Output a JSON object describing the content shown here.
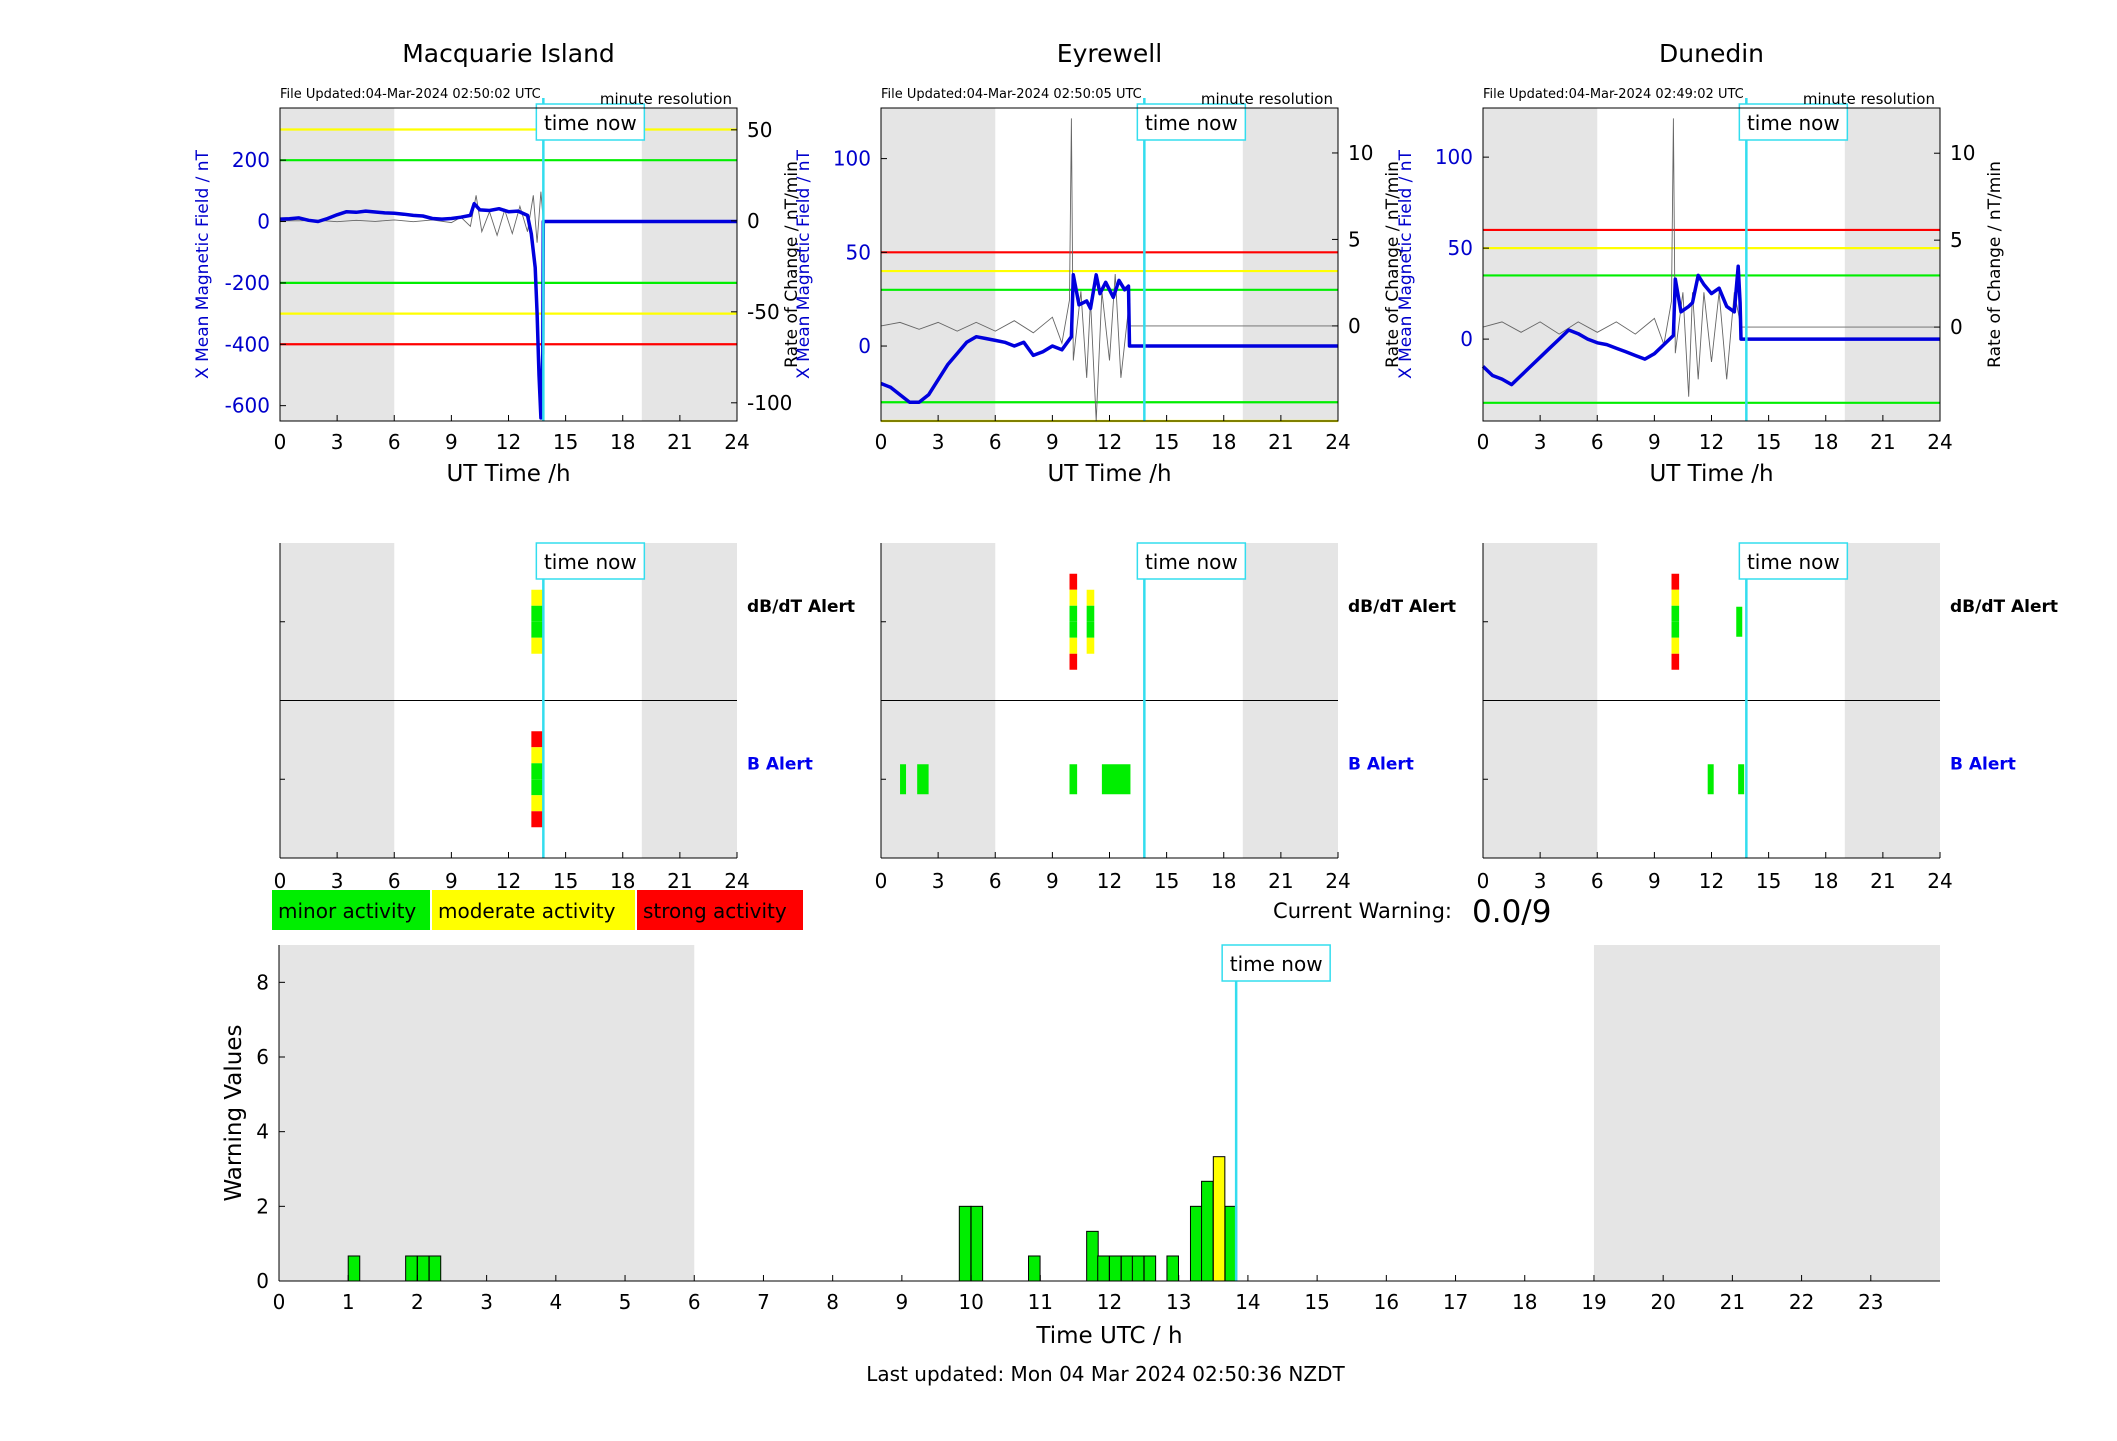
{
  "header": {
    "stations": [
      "Macquarie Island",
      "Eyrewell",
      "Dunedin"
    ]
  },
  "labels": {
    "time_now": "time now",
    "minute_resolution": "minute resolution",
    "ut_time": "UT Time /h",
    "ylabel_field": "X Mean Magnetic Field / nT",
    "ylabel_rate": "Rate of Change / nT/min",
    "dbdt_alert": "dB/dT Alert",
    "b_alert": "B Alert",
    "current_warning_label": "Current Warning:",
    "current_warning_value": "0.0/9",
    "bottom_ylabel": "Warning Values",
    "bottom_xlabel": "Time UTC / h",
    "last_updated": "Last updated: Mon 04 Mar 2024 02:50:36 NZDT"
  },
  "legend": {
    "minor": "minor activity",
    "moderate": "moderate activity",
    "strong": "strong activity"
  },
  "colors": {
    "minor": "#00ee00",
    "moderate": "#ffff00",
    "strong": "#ff0000",
    "field_line": "#0000dd",
    "time_now": "#33ddee",
    "shade": "#e5e5e5"
  },
  "chart_data": [
    {
      "type": "line",
      "title": "Macquarie Island",
      "file_updated": "File Updated:04-Mar-2024 02:50:02 UTC",
      "xlabel": "UT Time /h",
      "ylabel": "X Mean Magnetic Field / nT",
      "y2label": "Rate of Change / nT/min",
      "xlim": [
        0,
        24
      ],
      "ylim": [
        -650,
        370
      ],
      "y2lim": [
        -110,
        62
      ],
      "xticks": [
        0,
        3,
        6,
        9,
        12,
        15,
        18,
        21,
        24
      ],
      "yticks": [
        -600,
        -400,
        -200,
        0,
        200
      ],
      "y2ticks": [
        -100,
        -50,
        0,
        50
      ],
      "time_now": 13.83,
      "shaded": [
        [
          0,
          6
        ],
        [
          19,
          24
        ]
      ],
      "thresholds": [
        {
          "y": 300,
          "color": "yellow"
        },
        {
          "y": 200,
          "color": "green"
        },
        {
          "y": -200,
          "color": "green"
        },
        {
          "y": -300,
          "color": "yellow"
        },
        {
          "y": -400,
          "color": "red"
        }
      ],
      "field": [
        [
          0,
          8
        ],
        [
          0.5,
          9
        ],
        [
          1,
          12
        ],
        [
          1.5,
          4
        ],
        [
          2,
          0
        ],
        [
          2.5,
          10
        ],
        [
          3,
          22
        ],
        [
          3.5,
          32
        ],
        [
          4,
          30
        ],
        [
          4.5,
          34
        ],
        [
          5,
          31
        ],
        [
          5.5,
          28
        ],
        [
          6,
          27
        ],
        [
          6.5,
          24
        ],
        [
          7,
          20
        ],
        [
          7.5,
          18
        ],
        [
          8,
          10
        ],
        [
          8.5,
          8
        ],
        [
          9,
          10
        ],
        [
          9.5,
          14
        ],
        [
          10,
          20
        ],
        [
          10.2,
          58
        ],
        [
          10.5,
          38
        ],
        [
          11,
          36
        ],
        [
          11.5,
          42
        ],
        [
          12,
          32
        ],
        [
          12.5,
          34
        ],
        [
          13,
          20
        ],
        [
          13.2,
          -40
        ],
        [
          13.4,
          -150
        ],
        [
          13.5,
          -300
        ],
        [
          13.6,
          -500
        ],
        [
          13.7,
          -640
        ],
        [
          13.8,
          -430
        ],
        [
          13.83,
          0
        ],
        [
          24,
          0
        ]
      ],
      "rate": [
        [
          0,
          0
        ],
        [
          1,
          0
        ],
        [
          2,
          0.3
        ],
        [
          3,
          -0.5
        ],
        [
          4,
          0.3
        ],
        [
          5,
          -0.3
        ],
        [
          6,
          0.5
        ],
        [
          7,
          -0.5
        ],
        [
          8,
          0.5
        ],
        [
          9,
          -1
        ],
        [
          9.5,
          2
        ],
        [
          10,
          -3
        ],
        [
          10.3,
          14
        ],
        [
          10.6,
          -6
        ],
        [
          11,
          5
        ],
        [
          11.4,
          -8
        ],
        [
          11.8,
          6
        ],
        [
          12.2,
          -7
        ],
        [
          12.6,
          8
        ],
        [
          13,
          -6
        ],
        [
          13.3,
          14
        ],
        [
          13.5,
          -12
        ],
        [
          13.7,
          16
        ],
        [
          13.83,
          0
        ],
        [
          24,
          0
        ]
      ],
      "alerts": {
        "dbdt": [
          {
            "start": 13.2,
            "end": 13.8,
            "levels": [
              "yellow",
              "green",
              "green",
              "yellow"
            ]
          }
        ],
        "b": [
          {
            "start": 13.2,
            "end": 13.8,
            "levels": [
              "red",
              "yellow",
              "green",
              "green",
              "yellow",
              "red"
            ]
          }
        ]
      }
    },
    {
      "type": "line",
      "title": "Eyrewell",
      "file_updated": "File Updated:04-Mar-2024 02:50:05 UTC",
      "xlabel": "UT Time /h",
      "ylabel": "X Mean Magnetic Field / nT",
      "y2label": "Rate of Change / nT/min",
      "xlim": [
        0,
        24
      ],
      "ylim": [
        -40,
        127
      ],
      "y2lim": [
        -5.5,
        12.6
      ],
      "xticks": [
        0,
        3,
        6,
        9,
        12,
        15,
        18,
        21,
        24
      ],
      "yticks": [
        0,
        50,
        100
      ],
      "y2ticks": [
        0,
        5,
        10
      ],
      "time_now": 13.83,
      "shaded": [
        [
          0,
          6
        ],
        [
          19,
          24
        ]
      ],
      "thresholds": [
        {
          "y": 50,
          "color": "red"
        },
        {
          "y": 40,
          "color": "yellow"
        },
        {
          "y": 30,
          "color": "green"
        },
        {
          "y": -30,
          "color": "green"
        },
        {
          "y": -40,
          "color": "yellow"
        }
      ],
      "field": [
        [
          0,
          -20
        ],
        [
          0.5,
          -22
        ],
        [
          1,
          -26
        ],
        [
          1.5,
          -30
        ],
        [
          2,
          -30
        ],
        [
          2.5,
          -26
        ],
        [
          3,
          -18
        ],
        [
          3.5,
          -10
        ],
        [
          4,
          -4
        ],
        [
          4.5,
          2
        ],
        [
          5,
          5
        ],
        [
          5.5,
          4
        ],
        [
          6,
          3
        ],
        [
          6.5,
          2
        ],
        [
          7,
          0
        ],
        [
          7.5,
          2
        ],
        [
          8,
          -5
        ],
        [
          8.5,
          -3
        ],
        [
          9,
          0
        ],
        [
          9.5,
          -2
        ],
        [
          10,
          5
        ],
        [
          10.1,
          38
        ],
        [
          10.4,
          22
        ],
        [
          10.8,
          24
        ],
        [
          11,
          20
        ],
        [
          11.3,
          38
        ],
        [
          11.5,
          28
        ],
        [
          11.8,
          34
        ],
        [
          12.2,
          26
        ],
        [
          12.5,
          35
        ],
        [
          12.8,
          30
        ],
        [
          13,
          32
        ],
        [
          13.05,
          0
        ],
        [
          24,
          0
        ]
      ],
      "rate": [
        [
          0,
          0
        ],
        [
          1,
          0.2
        ],
        [
          2,
          -0.2
        ],
        [
          3,
          0.2
        ],
        [
          4,
          -0.3
        ],
        [
          5,
          0.2
        ],
        [
          6,
          -0.3
        ],
        [
          7,
          0.3
        ],
        [
          8,
          -0.4
        ],
        [
          9,
          0.5
        ],
        [
          9.5,
          -1
        ],
        [
          9.9,
          1.5
        ],
        [
          10,
          12
        ],
        [
          10.1,
          -2
        ],
        [
          10.5,
          2
        ],
        [
          10.8,
          -3
        ],
        [
          11,
          1.5
        ],
        [
          11.3,
          -5.5
        ],
        [
          11.6,
          2
        ],
        [
          12,
          -2
        ],
        [
          12.3,
          3
        ],
        [
          12.6,
          -3
        ],
        [
          13,
          1
        ],
        [
          13.05,
          0
        ],
        [
          24,
          0
        ]
      ],
      "alerts": {
        "dbdt": [
          {
            "start": 9.9,
            "end": 10.3,
            "levels": [
              "red",
              "yellow",
              "green",
              "green",
              "yellow",
              "red"
            ]
          },
          {
            "start": 10.8,
            "end": 11.2,
            "levels": [
              "yellow",
              "green",
              "green",
              "yellow"
            ]
          }
        ],
        "b": [
          {
            "start": 1.0,
            "end": 1.3,
            "levels": [
              "green"
            ]
          },
          {
            "start": 1.9,
            "end": 2.5,
            "levels": [
              "green"
            ]
          },
          {
            "start": 9.9,
            "end": 10.3,
            "levels": [
              "green"
            ]
          },
          {
            "start": 11.6,
            "end": 13.1,
            "levels": [
              "green"
            ]
          }
        ]
      }
    },
    {
      "type": "line",
      "title": "Dunedin",
      "file_updated": "File Updated:04-Mar-2024 02:49:02 UTC",
      "xlabel": "UT Time /h",
      "ylabel": "X Mean Magnetic Field / nT",
      "y2label": "Rate of Change / nT/min",
      "xlim": [
        0,
        24
      ],
      "ylim": [
        -45,
        127
      ],
      "y2lim": [
        -5.4,
        12.6
      ],
      "xticks": [
        0,
        3,
        6,
        9,
        12,
        15,
        18,
        21,
        24
      ],
      "yticks": [
        0,
        50,
        100
      ],
      "y2ticks": [
        0,
        5,
        10
      ],
      "time_now": 13.83,
      "shaded": [
        [
          0,
          6
        ],
        [
          19,
          24
        ]
      ],
      "thresholds": [
        {
          "y": 60,
          "color": "red"
        },
        {
          "y": 50,
          "color": "yellow"
        },
        {
          "y": 35,
          "color": "green"
        },
        {
          "y": -35,
          "color": "green"
        }
      ],
      "field": [
        [
          0,
          -15
        ],
        [
          0.5,
          -20
        ],
        [
          1,
          -22
        ],
        [
          1.5,
          -25
        ],
        [
          2,
          -20
        ],
        [
          2.5,
          -15
        ],
        [
          3,
          -10
        ],
        [
          3.5,
          -5
        ],
        [
          4,
          0
        ],
        [
          4.5,
          5
        ],
        [
          5,
          3
        ],
        [
          5.5,
          0
        ],
        [
          6,
          -2
        ],
        [
          6.5,
          -3
        ],
        [
          7,
          -5
        ],
        [
          7.5,
          -7
        ],
        [
          8,
          -9
        ],
        [
          8.5,
          -11
        ],
        [
          9,
          -8
        ],
        [
          9.5,
          -3
        ],
        [
          10,
          2
        ],
        [
          10.1,
          33
        ],
        [
          10.4,
          15
        ],
        [
          10.8,
          18
        ],
        [
          11,
          20
        ],
        [
          11.3,
          35
        ],
        [
          11.6,
          30
        ],
        [
          12,
          25
        ],
        [
          12.4,
          28
        ],
        [
          12.8,
          18
        ],
        [
          13.2,
          15
        ],
        [
          13.4,
          40
        ],
        [
          13.5,
          20
        ],
        [
          13.55,
          0
        ],
        [
          24,
          0
        ]
      ],
      "rate": [
        [
          0,
          0
        ],
        [
          1,
          0.3
        ],
        [
          2,
          -0.3
        ],
        [
          3,
          0.3
        ],
        [
          4,
          -0.4
        ],
        [
          5,
          0.3
        ],
        [
          6,
          -0.3
        ],
        [
          7,
          0.3
        ],
        [
          8,
          -0.4
        ],
        [
          9,
          0.5
        ],
        [
          9.5,
          -1
        ],
        [
          9.9,
          1.5
        ],
        [
          10,
          12
        ],
        [
          10.1,
          -1.5
        ],
        [
          10.5,
          2
        ],
        [
          10.8,
          -4
        ],
        [
          11,
          2
        ],
        [
          11.3,
          -3
        ],
        [
          11.6,
          2
        ],
        [
          12,
          -2
        ],
        [
          12.4,
          2
        ],
        [
          12.8,
          -3
        ],
        [
          13.2,
          2
        ],
        [
          13.55,
          0
        ],
        [
          24,
          0
        ]
      ],
      "alerts": {
        "dbdt": [
          {
            "start": 9.9,
            "end": 10.3,
            "levels": [
              "red",
              "yellow",
              "green",
              "green",
              "yellow",
              "red"
            ]
          },
          {
            "start": 13.3,
            "end": 13.6,
            "levels": [
              "green"
            ]
          }
        ],
        "b": [
          {
            "start": 11.8,
            "end": 12.1,
            "levels": [
              "green"
            ]
          },
          {
            "start": 13.4,
            "end": 13.7,
            "levels": [
              "green"
            ]
          }
        ]
      }
    },
    {
      "type": "bar",
      "title": "",
      "xlabel": "Time UTC / h",
      "ylabel": "Warning Values",
      "xlim": [
        0,
        24
      ],
      "ylim": [
        0,
        9
      ],
      "xticks": [
        0,
        1,
        2,
        3,
        4,
        5,
        6,
        7,
        8,
        9,
        10,
        11,
        12,
        13,
        14,
        15,
        16,
        17,
        18,
        19,
        20,
        21,
        22,
        23
      ],
      "yticks": [
        0,
        2,
        4,
        6,
        8
      ],
      "time_now": 13.83,
      "shaded": [
        [
          0,
          6
        ],
        [
          19,
          24
        ]
      ],
      "bar_width_h": 0.1667,
      "bars": [
        {
          "x": 1.0,
          "value": 0.67,
          "level": "minor"
        },
        {
          "x": 1.83,
          "value": 0.67,
          "level": "minor"
        },
        {
          "x": 2.0,
          "value": 0.67,
          "level": "minor"
        },
        {
          "x": 2.17,
          "value": 0.67,
          "level": "minor"
        },
        {
          "x": 9.83,
          "value": 2.0,
          "level": "minor"
        },
        {
          "x": 10.0,
          "value": 2.0,
          "level": "minor"
        },
        {
          "x": 10.83,
          "value": 0.67,
          "level": "minor"
        },
        {
          "x": 11.67,
          "value": 1.33,
          "level": "minor"
        },
        {
          "x": 11.83,
          "value": 0.67,
          "level": "minor"
        },
        {
          "x": 12.0,
          "value": 0.67,
          "level": "minor"
        },
        {
          "x": 12.17,
          "value": 0.67,
          "level": "minor"
        },
        {
          "x": 12.33,
          "value": 0.67,
          "level": "minor"
        },
        {
          "x": 12.5,
          "value": 0.67,
          "level": "minor"
        },
        {
          "x": 12.83,
          "value": 0.67,
          "level": "minor"
        },
        {
          "x": 13.17,
          "value": 2.0,
          "level": "minor"
        },
        {
          "x": 13.33,
          "value": 2.67,
          "level": "minor"
        },
        {
          "x": 13.5,
          "value": 3.33,
          "level": "moderate"
        },
        {
          "x": 13.67,
          "value": 2.0,
          "level": "minor"
        }
      ]
    }
  ]
}
